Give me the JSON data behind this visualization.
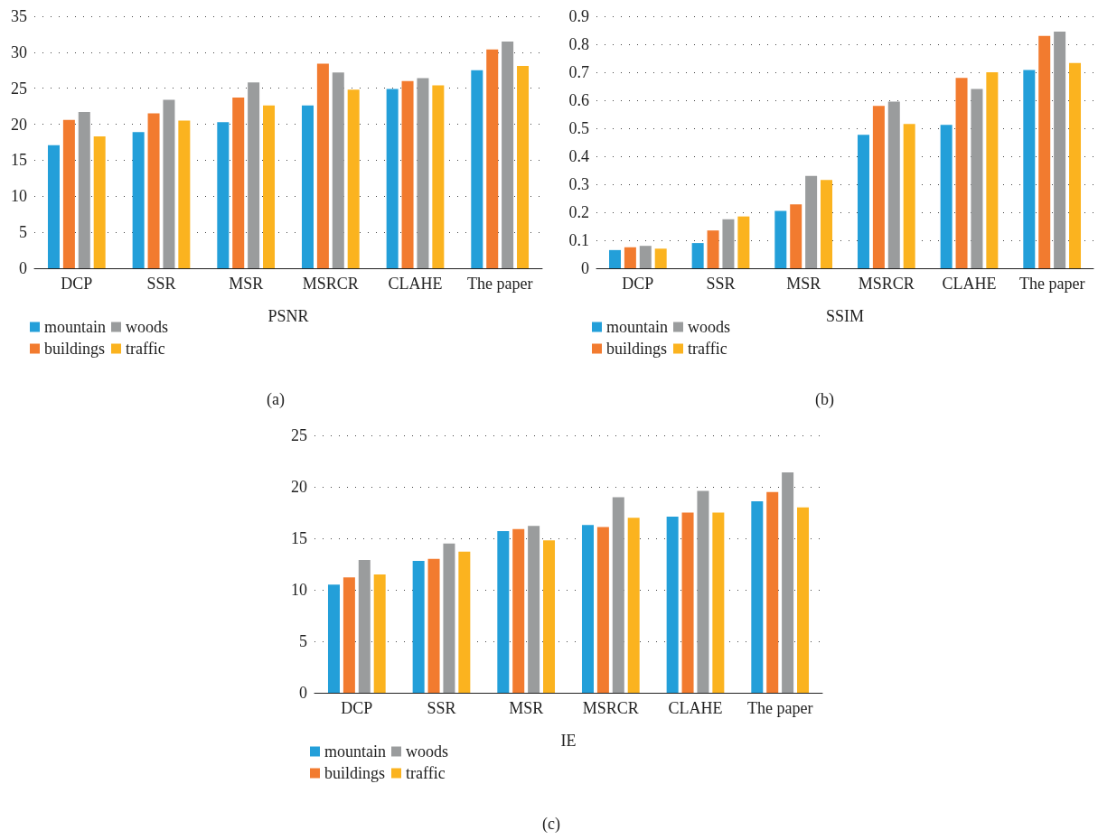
{
  "chart_data": [
    {
      "type": "bar",
      "xlabel": "PSNR",
      "categories": [
        "DCP",
        "SSR",
        "MSR",
        "MSRCR",
        "CLAHE",
        "The paper"
      ],
      "series": [
        {
          "name": "mountain",
          "color": "#239fd9",
          "values": [
            17.1,
            18.9,
            20.3,
            22.6,
            24.9,
            27.5
          ]
        },
        {
          "name": "buildings",
          "color": "#f27b2f",
          "values": [
            20.6,
            21.5,
            23.7,
            28.4,
            26.0,
            30.4
          ]
        },
        {
          "name": "woods",
          "color": "#9a9c9d",
          "values": [
            21.7,
            23.4,
            25.8,
            27.2,
            26.4,
            31.5
          ]
        },
        {
          "name": "traffic",
          "color": "#fbb31f",
          "values": [
            18.3,
            20.5,
            22.6,
            24.8,
            25.4,
            28.1
          ]
        }
      ],
      "ylim": [
        0,
        35
      ],
      "yticks": [
        0,
        5,
        10,
        15,
        20,
        25,
        30,
        35
      ],
      "grid": "y",
      "legend": "bottom",
      "annotations": [
        "(a)"
      ]
    },
    {
      "type": "bar",
      "xlabel": "SSIM",
      "categories": [
        "DCP",
        "SSR",
        "MSR",
        "MSRCR",
        "CLAHE",
        "The paper"
      ],
      "series": [
        {
          "name": "mountain",
          "color": "#239fd9",
          "values": [
            0.065,
            0.09,
            0.205,
            0.477,
            0.512,
            0.708
          ]
        },
        {
          "name": "buildings",
          "color": "#f27b2f",
          "values": [
            0.075,
            0.135,
            0.228,
            0.58,
            0.68,
            0.83
          ]
        },
        {
          "name": "woods",
          "color": "#9a9c9d",
          "values": [
            0.08,
            0.175,
            0.33,
            0.595,
            0.64,
            0.845
          ]
        },
        {
          "name": "traffic",
          "color": "#fbb31f",
          "values": [
            0.07,
            0.185,
            0.315,
            0.515,
            0.7,
            0.733
          ]
        }
      ],
      "ylim": [
        0,
        0.9
      ],
      "yticks": [
        0,
        0.1,
        0.2,
        0.3,
        0.4,
        0.5,
        0.6,
        0.7,
        0.8,
        0.9
      ],
      "grid": "y",
      "legend": "bottom",
      "annotations": [
        "(b)"
      ]
    },
    {
      "type": "bar",
      "xlabel": "IE",
      "categories": [
        "DCP",
        "SSR",
        "MSR",
        "MSRCR",
        "CLAHE",
        "The paper"
      ],
      "series": [
        {
          "name": "mountain",
          "color": "#239fd9",
          "values": [
            10.5,
            12.8,
            15.7,
            16.3,
            17.1,
            18.6
          ]
        },
        {
          "name": "buildings",
          "color": "#f27b2f",
          "values": [
            11.2,
            13.0,
            15.9,
            16.1,
            17.5,
            19.5
          ]
        },
        {
          "name": "woods",
          "color": "#9a9c9d",
          "values": [
            12.9,
            14.5,
            16.2,
            19.0,
            19.6,
            21.4
          ]
        },
        {
          "name": "traffic",
          "color": "#fbb31f",
          "values": [
            11.5,
            13.7,
            14.8,
            17.0,
            17.5,
            18.0
          ]
        }
      ],
      "ylim": [
        0,
        25
      ],
      "yticks": [
        0,
        5,
        10,
        15,
        20,
        25
      ],
      "grid": "y",
      "legend": "bottom",
      "annotations": [
        "(c)"
      ]
    }
  ]
}
